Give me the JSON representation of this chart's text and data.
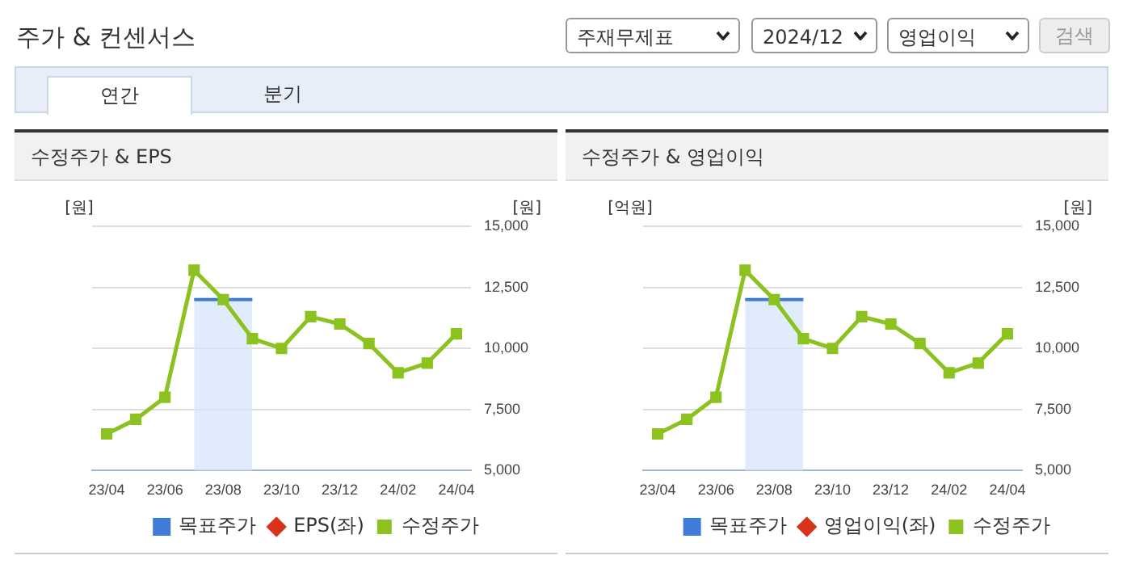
{
  "chart_data": [
    {
      "type": "line",
      "title": "수정주가 & EPS",
      "ylabel": "[원]",
      "y2label": "[원]",
      "annotations": [
        "주가 & 컨센서스",
        "주재무제표",
        "2024/12",
        "영업이익",
        "검색",
        "연간",
        "분기"
      ],
      "categories": [
        "23/04",
        null,
        "23/06",
        null,
        "23/08",
        null,
        "23/10",
        null,
        "23/12",
        null,
        "24/02",
        null,
        "24/04"
      ],
      "series": [
        {
          "name": "목표주가",
          "type": "area",
          "color": "#3f7bd9",
          "axis": "y2",
          "values": [
            null,
            null,
            null,
            12000,
            12000,
            12000,
            null,
            null,
            null,
            null,
            null,
            null,
            null
          ]
        },
        {
          "name": "EPS(좌)",
          "marker": "diamond",
          "color": "#d9341b",
          "values": [
            null,
            null,
            null,
            null,
            null,
            null,
            null,
            null,
            null,
            null,
            null,
            null,
            null
          ]
        },
        {
          "name": "수정주가",
          "marker": "square",
          "color": "#8cc21f",
          "axis": "y2",
          "values": [
            6500,
            7100,
            8000,
            13200,
            12000,
            10400,
            10000,
            11300,
            11000,
            10200,
            9000,
            9400,
            10600
          ]
        }
      ],
      "y2lim": [
        5000,
        15000
      ],
      "y2ticks": [
        {
          "value": 5000,
          "label": "5,000"
        },
        {
          "value": 7500,
          "label": "7,500"
        },
        {
          "value": 10000,
          "label": "10,000"
        },
        {
          "value": 12500,
          "label": "12,500"
        },
        {
          "value": 15000,
          "label": "15,000"
        }
      ],
      "grid": "y",
      "legend": "bottom"
    },
    {
      "type": "line",
      "title": "수정주가 & 영업이익",
      "ylabel": "[억원]",
      "y2label": "[원]",
      "categories": [
        "23/04",
        null,
        "23/06",
        null,
        "23/08",
        null,
        "23/10",
        null,
        "23/12",
        null,
        "24/02",
        null,
        "24/04"
      ],
      "series": [
        {
          "name": "목표주가",
          "type": "area",
          "color": "#3f7bd9",
          "axis": "y2",
          "values": [
            null,
            null,
            null,
            12000,
            12000,
            12000,
            null,
            null,
            null,
            null,
            null,
            null,
            null
          ]
        },
        {
          "name": "영업이익(좌)",
          "marker": "diamond",
          "color": "#d9341b",
          "values": [
            null,
            null,
            null,
            null,
            null,
            null,
            null,
            null,
            null,
            null,
            null,
            null,
            null
          ]
        },
        {
          "name": "수정주가",
          "marker": "square",
          "color": "#8cc21f",
          "axis": "y2",
          "values": [
            6500,
            7100,
            8000,
            13200,
            12000,
            10400,
            10000,
            11300,
            11000,
            10200,
            9000,
            9400,
            10600
          ]
        }
      ],
      "y2lim": [
        5000,
        15000
      ],
      "y2ticks": [
        {
          "value": 5000,
          "label": "5,000"
        },
        {
          "value": 7500,
          "label": "7,500"
        },
        {
          "value": 10000,
          "label": "10,000"
        },
        {
          "value": 12500,
          "label": "12,500"
        },
        {
          "value": 15000,
          "label": "15,000"
        }
      ],
      "grid": "y",
      "legend": "bottom"
    }
  ]
}
